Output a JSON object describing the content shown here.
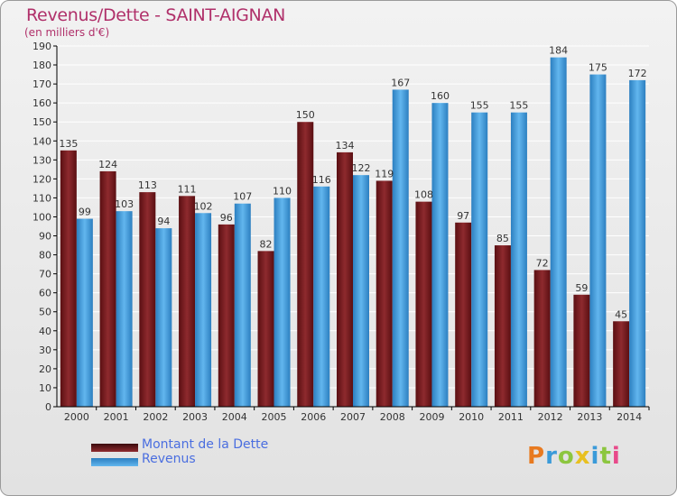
{
  "header": {
    "title": "Revenus/Dette - SAINT-AIGNAN",
    "subtitle": "(en milliers d'€)"
  },
  "legend": {
    "items": [
      {
        "label": "Montant de la Dette",
        "color": "#7a1b1f"
      },
      {
        "label": "Revenus",
        "color": "#4ea6e6"
      }
    ]
  },
  "logo": {
    "text": "Proxiti",
    "letter_colors": [
      "#e87a20",
      "#3a9ad9",
      "#8cc63f",
      "#e8c020",
      "#3a9ad9",
      "#8cc63f",
      "#e84a8a"
    ]
  },
  "colors": {
    "dette_dark": "#5a0f12",
    "dette_light": "#8e2a2e",
    "revenus_dark": "#2c7fc0",
    "revenus_light": "#62b6ee",
    "axis": "#000000",
    "grid": "#ffffff",
    "title": "#b0306a"
  },
  "chart_data": {
    "type": "bar",
    "title": "Revenus/Dette - SAINT-AIGNAN",
    "subtitle": "(en milliers d'€)",
    "xlabel": "",
    "ylabel": "",
    "ylim": [
      0,
      190
    ],
    "ytick_step": 10,
    "grid": true,
    "legend_position": "bottom-left",
    "categories": [
      "2000",
      "2001",
      "2002",
      "2003",
      "2004",
      "2005",
      "2006",
      "2007",
      "2008",
      "2009",
      "2010",
      "2011",
      "2012",
      "2013",
      "2014"
    ],
    "series": [
      {
        "name": "Montant de la Dette",
        "values": [
          135,
          124,
          113,
          111,
          96,
          82,
          150,
          134,
          119,
          108,
          97,
          85,
          72,
          59,
          45
        ]
      },
      {
        "name": "Revenus",
        "values": [
          99,
          103,
          94,
          102,
          107,
          110,
          116,
          122,
          167,
          160,
          155,
          155,
          184,
          175,
          172
        ]
      }
    ]
  }
}
